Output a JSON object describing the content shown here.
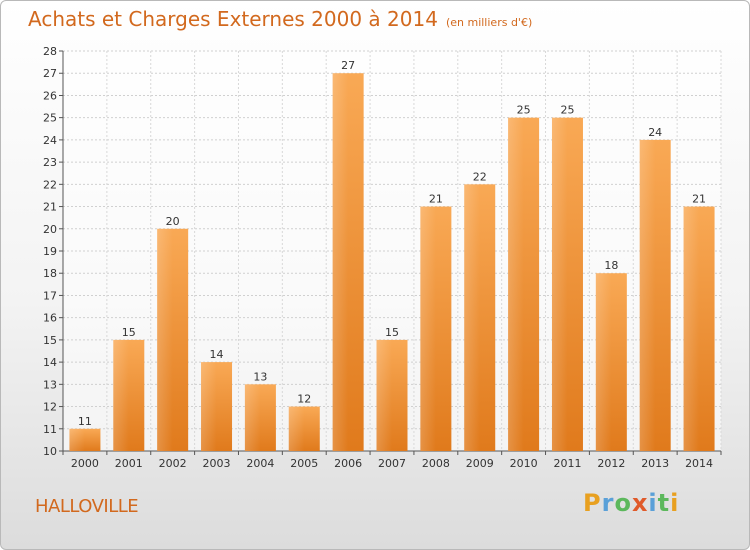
{
  "header": {
    "title": "Achats et Charges Externes 2000 à 2014",
    "subtitle": "(en milliers d'€)"
  },
  "commune": "HALLOVILLE",
  "logo": {
    "text": "Proxiti",
    "letters": [
      "P",
      "r",
      "o",
      "x",
      "i",
      "t",
      "i"
    ],
    "colors": [
      "#e8a020",
      "#5aa0d8",
      "#5cb85c",
      "#e05a2a",
      "#5aa0d8",
      "#5cb85c",
      "#e8a020"
    ]
  },
  "chart_data": {
    "type": "bar",
    "categories": [
      "2000",
      "2001",
      "2002",
      "2003",
      "2004",
      "2005",
      "2006",
      "2007",
      "2008",
      "2009",
      "2010",
      "2011",
      "2012",
      "2013",
      "2014"
    ],
    "values": [
      11,
      15,
      20,
      14,
      13,
      12,
      27,
      15,
      21,
      22,
      25,
      25,
      18,
      24,
      21
    ],
    "title": "Achats et Charges Externes 2000 à 2014",
    "subtitle": "(en milliers d'€)",
    "xlabel": "",
    "ylabel": "",
    "ylim": [
      10,
      28
    ],
    "yticks": [
      10,
      11,
      12,
      13,
      14,
      15,
      16,
      17,
      18,
      19,
      20,
      21,
      22,
      23,
      24,
      25,
      26,
      27,
      28
    ],
    "grid": true,
    "bar_color": "#f08c2c",
    "bar_color_light": "#f9ad5e"
  }
}
